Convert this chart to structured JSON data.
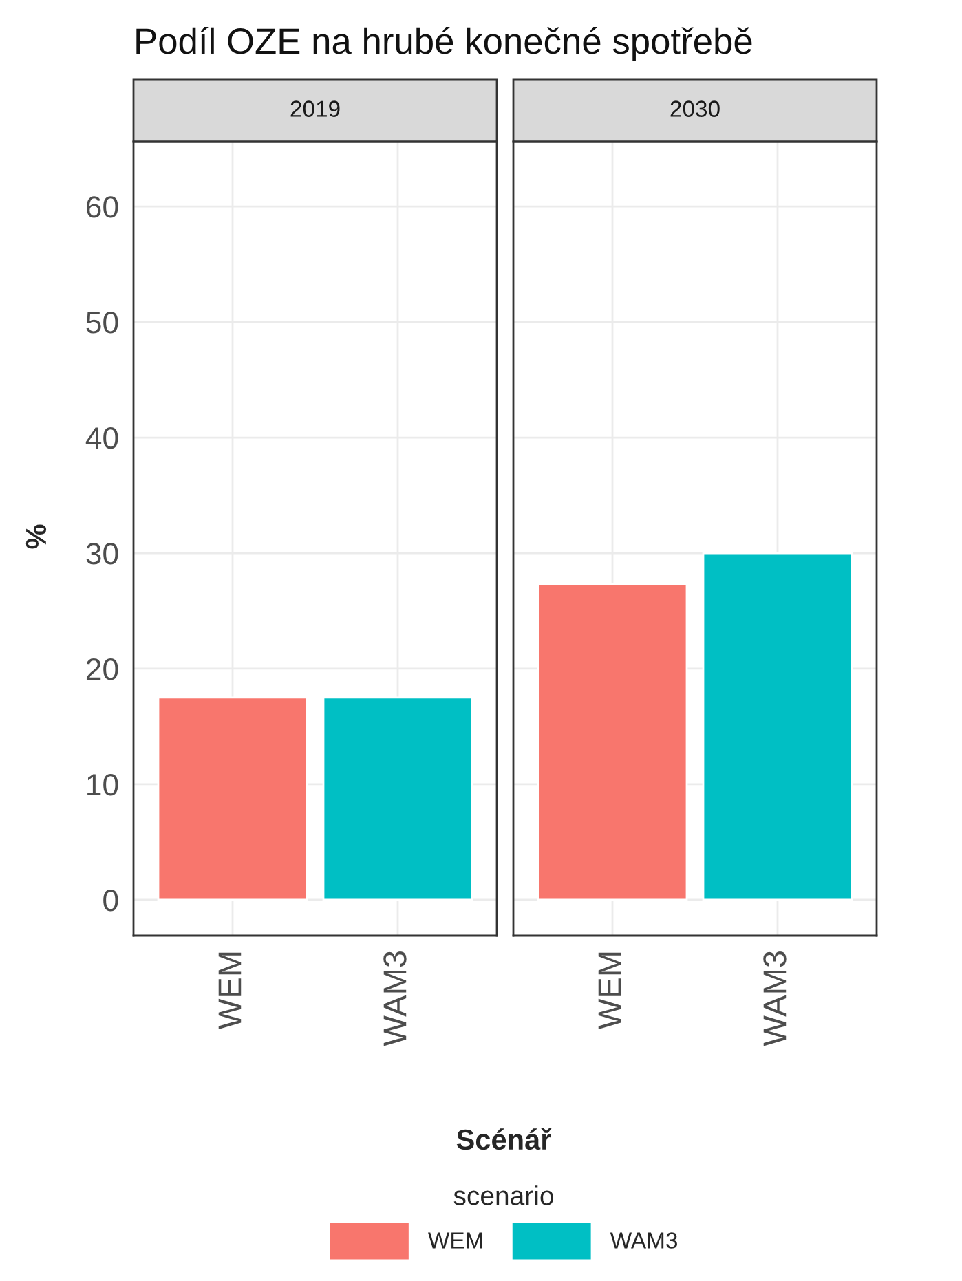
{
  "chart_data": [
    {
      "type": "bar",
      "title": "Podíl OZE na hrubé konečné spotřebě",
      "subtitle": "2019",
      "xlabel": "Scénář",
      "ylabel": "%",
      "legend_title": "scenario",
      "legend": "bottom",
      "categories": [
        "WEM",
        "WAM3"
      ],
      "series": [
        {
          "name": "WEM",
          "color": "#f8766d",
          "values": [
            17.5,
            null
          ]
        },
        {
          "name": "WAM3",
          "color": "#00bfc4",
          "values": [
            null,
            17.5
          ]
        }
      ],
      "ylim": [
        -3.1,
        65.6
      ],
      "yticks": [
        0,
        10,
        20,
        30,
        40,
        50,
        60
      ],
      "grid": true
    },
    {
      "type": "bar",
      "subtitle": "2030",
      "tick_labels": "x",
      "categories": [
        "WEM",
        "WAM3"
      ],
      "series": [
        {
          "color": "#f8766d",
          "values": [
            27.3,
            null
          ]
        },
        {
          "color": "#00bfc4",
          "values": [
            null,
            30
          ]
        }
      ],
      "ylim": [
        -3.1,
        65.6
      ],
      "yticks": [
        0,
        10,
        20,
        30,
        40,
        50,
        60
      ],
      "grid": true
    }
  ]
}
